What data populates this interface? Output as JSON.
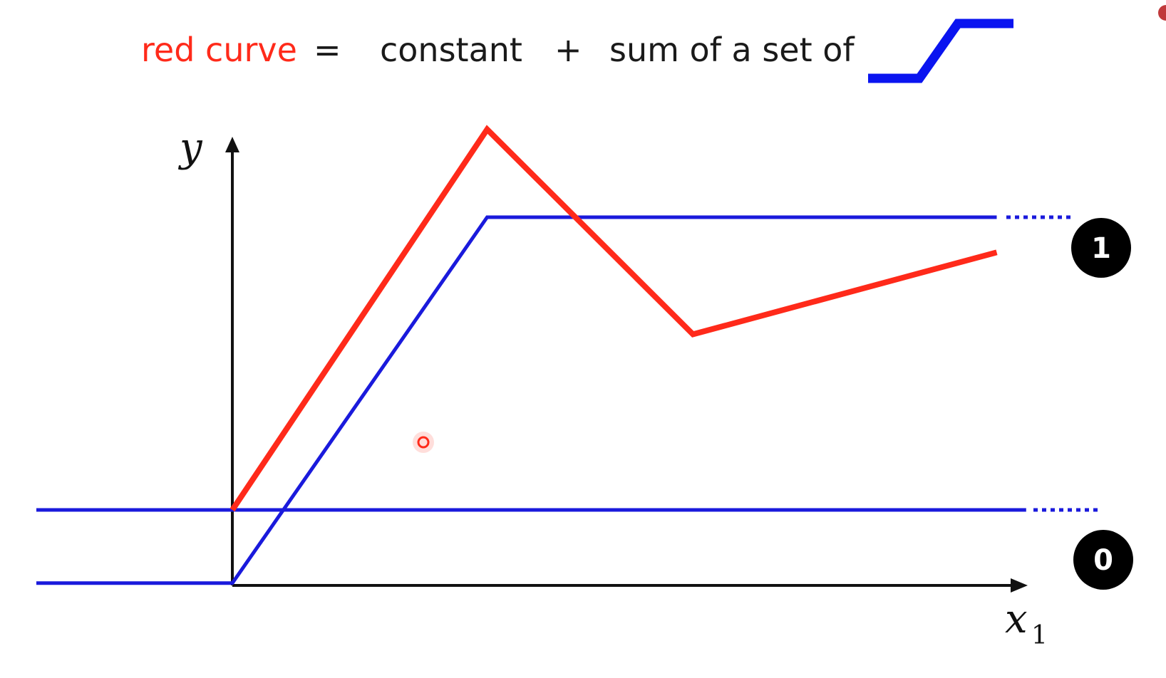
{
  "equation": {
    "lhs": "red curve",
    "equals": "=",
    "term1": "constant",
    "plus": "+",
    "term2": "sum of a set of",
    "icon": "hard-sigmoid-icon"
  },
  "axes": {
    "y_label": "y",
    "x_label": "x",
    "x_subscript": "1"
  },
  "levels": {
    "upper": "1",
    "lower": "0"
  },
  "colors": {
    "red_curve": "#ff2a1a",
    "blue_curve": "#1a1adc",
    "icon_blue": "#0a14f0",
    "axis": "#111111",
    "badge": "#000000"
  },
  "chart_data": {
    "type": "line",
    "series": [
      {
        "name": "red curve",
        "x": [
          0,
          1.3,
          2.35,
          3.9
        ],
        "y": [
          0.0,
          1.3,
          0.6,
          0.88
        ]
      },
      {
        "name": "constant",
        "x": [
          -1.0,
          4.05
        ],
        "y": [
          0.0,
          0.0
        ]
      },
      {
        "name": "hard sigmoid",
        "x": [
          -1.0,
          0,
          1.3,
          3.9
        ],
        "y": [
          -0.25,
          -0.25,
          1.0,
          1.0
        ]
      }
    ],
    "xlim": [
      -1.0,
      4.35
    ],
    "ylim": [
      -0.25,
      1.35
    ],
    "grid": false
  },
  "cursor": {
    "icon": "pointer-dot-icon"
  }
}
